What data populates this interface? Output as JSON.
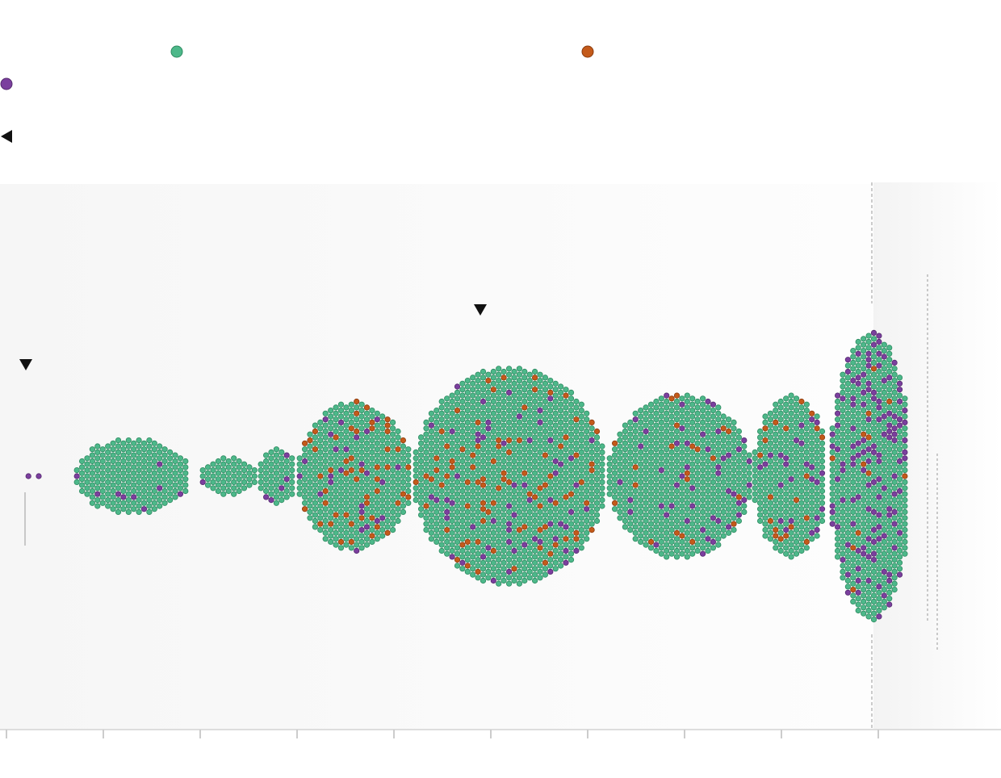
{
  "chart_data": {
    "type": "scatter",
    "variant": "beeswarm",
    "title": "",
    "xlabel": "",
    "ylabel": "",
    "grid": false,
    "legend_placement": "top",
    "colors": {
      "group_a": "#4db88a",
      "group_b": "#c45a1a",
      "group_c": "#7b3f9e",
      "marker": "#111111",
      "axis": "#dddddd",
      "dashed_line": "#999999"
    },
    "legend": [
      {
        "key": "group_a",
        "label": ""
      },
      {
        "key": "group_b",
        "label": ""
      },
      {
        "key": "group_c",
        "label": ""
      }
    ],
    "xlim": [
      0,
      10.3
    ],
    "xticks": [
      0,
      1,
      2,
      3,
      4,
      5,
      6,
      7,
      8,
      9
    ],
    "tick_labels": [],
    "markers": [
      {
        "x": 0.2,
        "label": ""
      },
      {
        "x": 4.9,
        "label": ""
      }
    ],
    "reference_line_x": 8.93,
    "clusters": [
      {
        "x_start": 0.2,
        "x_end": 0.45,
        "count": 4,
        "share": [
          0.0,
          0.0,
          1.0
        ]
      },
      {
        "x_start": 0.7,
        "x_end": 1.9,
        "count": 230,
        "share": [
          0.95,
          0.0,
          0.05
        ]
      },
      {
        "x_start": 2.0,
        "x_end": 2.6,
        "count": 60,
        "share": [
          0.98,
          0.0,
          0.02
        ]
      },
      {
        "x_start": 2.6,
        "x_end": 3.0,
        "count": 60,
        "share": [
          0.97,
          0.0,
          0.03
        ]
      },
      {
        "x_start": 3.0,
        "x_end": 4.2,
        "count": 450,
        "share": [
          0.83,
          0.1,
          0.07
        ]
      },
      {
        "x_start": 4.2,
        "x_end": 6.2,
        "count": 1100,
        "share": [
          0.86,
          0.08,
          0.06
        ]
      },
      {
        "x_start": 6.2,
        "x_end": 7.7,
        "count": 620,
        "share": [
          0.9,
          0.05,
          0.05
        ]
      },
      {
        "x_start": 7.7,
        "x_end": 8.5,
        "count": 330,
        "share": [
          0.89,
          0.05,
          0.06
        ]
      },
      {
        "x_start": 8.5,
        "x_end": 9.35,
        "count": 620,
        "share": [
          0.75,
          0.03,
          0.22
        ]
      }
    ]
  }
}
